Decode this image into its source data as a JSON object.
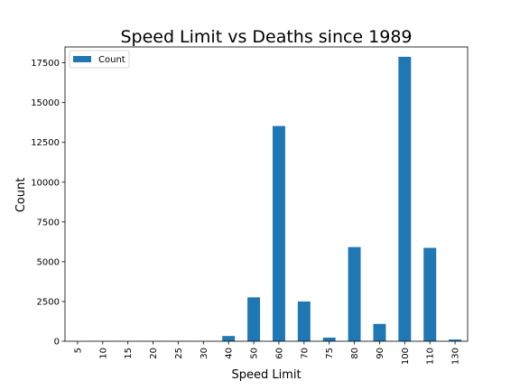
{
  "chart_data": {
    "type": "bar",
    "title": "Speed Limit vs Deaths since 1989",
    "xlabel": "Speed Limit",
    "ylabel": "Count",
    "categories": [
      "5",
      "10",
      "15",
      "20",
      "25",
      "30",
      "40",
      "50",
      "60",
      "70",
      "75",
      "80",
      "90",
      "100",
      "110",
      "130"
    ],
    "series": [
      {
        "name": "Count",
        "color": "#1f77b4",
        "values": [
          3,
          4,
          3,
          5,
          5,
          8,
          330,
          2760,
          13530,
          2500,
          230,
          5920,
          1090,
          17880,
          5870,
          110
        ]
      }
    ],
    "ylim": [
      0,
      18500
    ],
    "yticks": [
      0,
      2500,
      5000,
      7500,
      10000,
      12500,
      15000,
      17500
    ],
    "grid": false,
    "legend": "top-left"
  }
}
